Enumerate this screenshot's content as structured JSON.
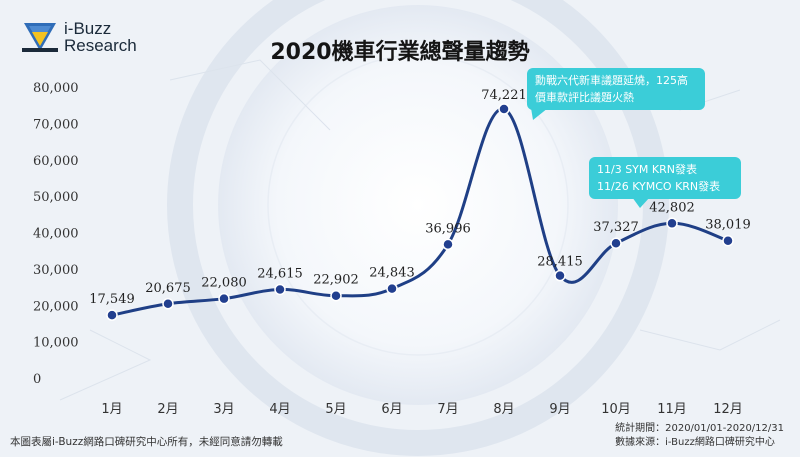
{
  "logo": {
    "line1": "i-Buzz",
    "line2": "Research",
    "colors": {
      "blue": "#2f6db8",
      "yellow": "#f3c221",
      "dark": "#1b2a3a"
    }
  },
  "title": "2020機車行業總聲量趨勢",
  "annotations": [
    {
      "text": "勳戰六代新車議題延燒，125高價車款評比議題火熱"
    },
    {
      "line1": "11/3 SYM KRN發表",
      "line2": "11/26 KYMCO KRN發表"
    }
  ],
  "footer": {
    "copyright": "本圖表屬i-Buzz網路口碑研究中心所有，未經同意請勿轉載",
    "period": "統計期間：2020/01/01-2020/12/31",
    "source": "數據來源：i-Buzz網路口碑研究中心"
  },
  "colors": {
    "line": "#1f3f86",
    "point": "#223f8f",
    "callout": "#3bcdd8"
  },
  "chart_data": {
    "type": "line",
    "categories": [
      "1月",
      "2月",
      "3月",
      "4月",
      "5月",
      "6月",
      "7月",
      "8月",
      "9月",
      "10月",
      "11月",
      "12月"
    ],
    "series": [
      {
        "values": [
          17549,
          20675,
          22080,
          24615,
          22902,
          24843,
          36996,
          74221,
          28415,
          37327,
          42802,
          38019
        ]
      }
    ],
    "data_labels": [
      "17,549",
      "20,675",
      "22,080",
      "24,615",
      "22,902",
      "24,843",
      "36,996",
      "74,221",
      "28,415",
      "37,327",
      "42,802",
      "38,019"
    ],
    "y_ticks": [
      "0",
      "10,000",
      "20,000",
      "30,000",
      "40,000",
      "50,000",
      "60,000",
      "70,000",
      "80,000"
    ],
    "ylim": [
      0,
      80000
    ],
    "grid": false,
    "smooth": true
  }
}
